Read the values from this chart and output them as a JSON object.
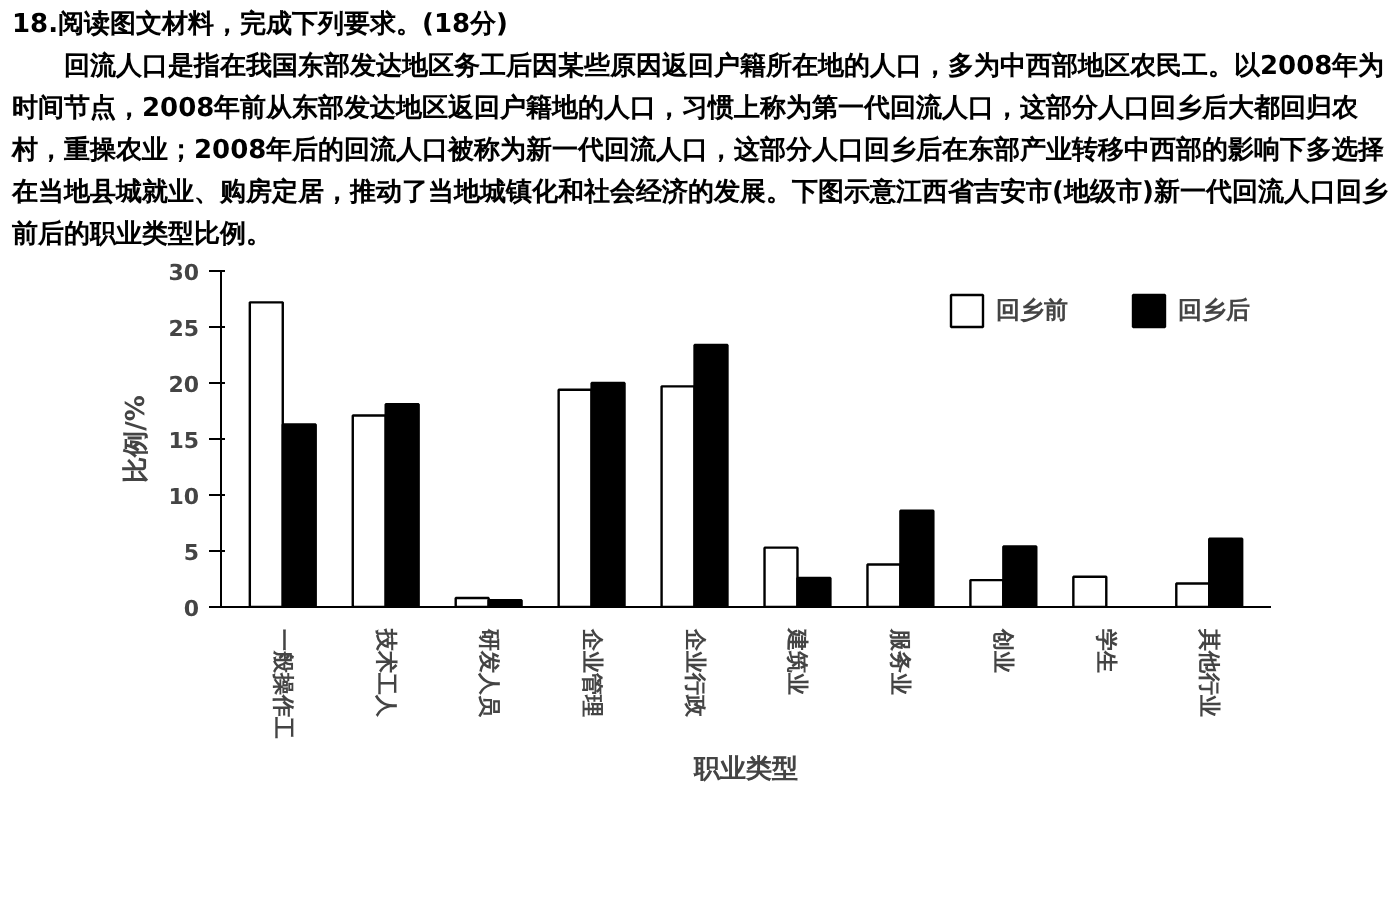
{
  "chart_data": {
    "type": "bar",
    "title": "18.阅读图文材料，完成下列要求。(18分)",
    "annotations": [
      "回流人口是指在我国东部发达地区务工后因某些原因返回户籍所在地的人口，多为中西部地区农民工。以2008年为时间节点，2008年前从东部发达地区返回户籍地的人口，习惯上称为第一代回流人口，这部分人口回乡后大都回归农村，重操农业；2008年后的回流人口被称为新一代回流人口，这部分人口回乡后在东部产业转移中西部的影响下多选择在当地县城就业、购房定居，推动了当地城镇化和社会经济的发展。下图示意江西省吉安市(地级市)新一代回流人口回乡前后的职业类型比例。"
    ],
    "xlabel": "职业类型",
    "ylabel": "比例/%",
    "categories": [
      "一般操作工",
      "技术工人",
      "研发人员",
      "企业管理",
      "企业行政",
      "建筑业",
      "服务业",
      "创业",
      "学生",
      "其他行业"
    ],
    "series": [
      {
        "name": "回乡前",
        "color": "#ffffff",
        "values": [
          27.2,
          17.1,
          0.8,
          19.4,
          19.7,
          5.3,
          3.8,
          2.4,
          2.7,
          2.1
        ]
      },
      {
        "name": "回乡后",
        "color": "#000000",
        "values": [
          16.3,
          18.1,
          0.6,
          20.0,
          23.4,
          2.6,
          8.6,
          5.4,
          null,
          6.1
        ]
      }
    ],
    "ylim": [
      0,
      30
    ],
    "yticks": [
      0,
      5,
      10,
      15,
      20,
      25,
      30
    ],
    "grid": false,
    "legend": "top right"
  }
}
